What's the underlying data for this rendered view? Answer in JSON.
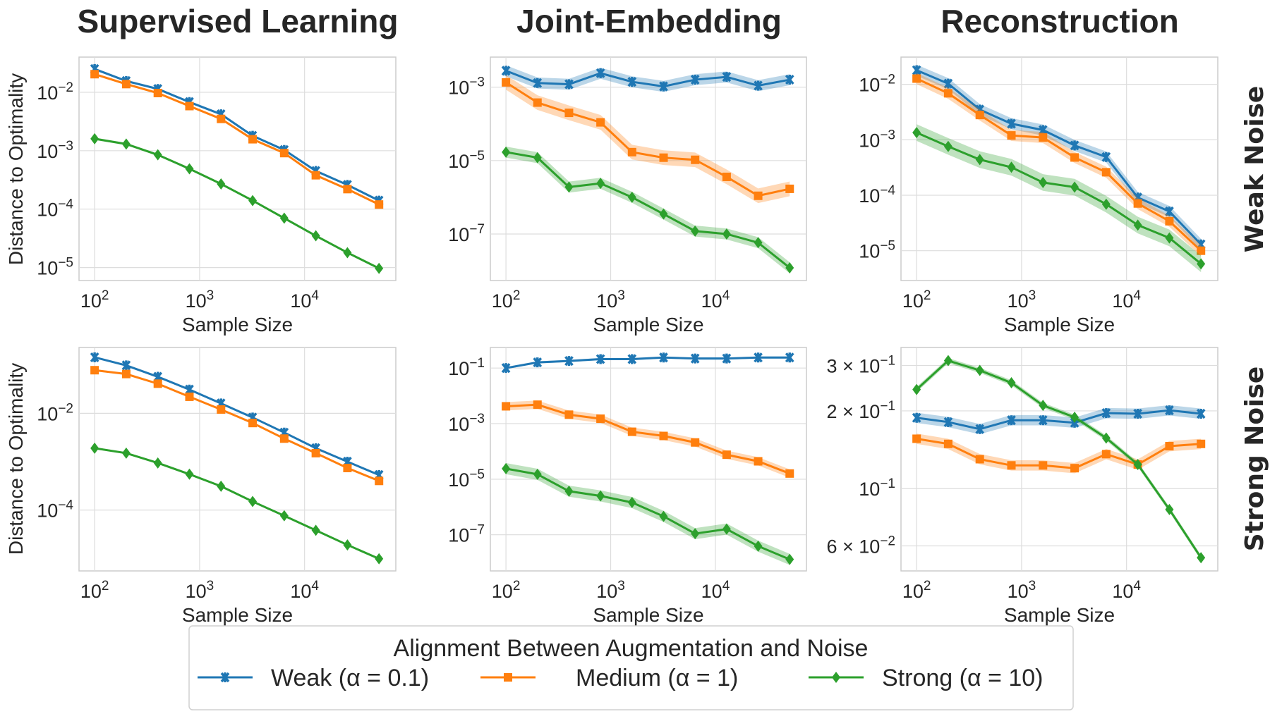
{
  "colors": {
    "weak": "#1f77b4",
    "medium": "#ff7f0e",
    "strong": "#2ca02c"
  },
  "column_titles": [
    "Supervised Learning",
    "Joint-Embedding",
    "Reconstruction"
  ],
  "row_labels": [
    "Weak Noise",
    "Strong Noise"
  ],
  "ylabel": "Distance to Optimality",
  "legend": {
    "title": "Alignment Between Augmentation and Noise",
    "entries": [
      {
        "key": "weak",
        "label": "Weak (α = 0.1)",
        "marker": "x"
      },
      {
        "key": "medium",
        "label": "Medium (α = 1)",
        "marker": "square"
      },
      {
        "key": "strong",
        "label": "Strong (α = 10)",
        "marker": "diamond"
      }
    ],
    "placement": "bottom-center"
  },
  "chart_data": [
    {
      "type": "line",
      "title": "Supervised Learning",
      "row": "Weak Noise",
      "xlabel": "Sample Size",
      "ylabel": "Distance to Optimality",
      "xscale": "log",
      "yscale": "log",
      "grid": true,
      "x": [
        100,
        200,
        400,
        800,
        1600,
        3200,
        6400,
        12800,
        25600,
        51200
      ],
      "xlim": [
        71,
        74000
      ],
      "ylim": [
        6e-06,
        0.04
      ],
      "xticks": [
        {
          "value": 100,
          "base": "10",
          "exp": "2"
        },
        {
          "value": 1000,
          "base": "10",
          "exp": "3"
        },
        {
          "value": 10000,
          "base": "10",
          "exp": "4"
        }
      ],
      "yticks": [
        {
          "value": 0.01,
          "base": "10",
          "exp": "−2"
        },
        {
          "value": 0.001,
          "base": "10",
          "exp": "−3"
        },
        {
          "value": 0.0001,
          "base": "10",
          "exp": "−4"
        },
        {
          "value": 1e-05,
          "base": "10",
          "exp": "−5"
        }
      ],
      "series": [
        {
          "key": "weak",
          "values": [
            0.025,
            0.0156,
            0.0114,
            0.0068,
            0.0042,
            0.0018,
            0.00103,
            0.00045,
            0.00026,
            0.00014
          ],
          "spread": 0.02
        },
        {
          "key": "medium",
          "values": [
            0.0204,
            0.0138,
            0.0097,
            0.0058,
            0.0035,
            0.00157,
            0.00091,
            0.00038,
            0.00022,
            0.00012
          ],
          "spread": 0.02
        },
        {
          "key": "strong",
          "values": [
            0.0016,
            0.0013,
            0.00085,
            0.00049,
            0.00027,
            0.00014,
            7e-05,
            3.5e-05,
            1.8e-05,
            9.7e-06
          ],
          "spread": 0.02
        }
      ]
    },
    {
      "type": "line",
      "title": "Joint-Embedding",
      "row": "Weak Noise",
      "xlabel": "Sample Size",
      "xscale": "log",
      "yscale": "log",
      "grid": true,
      "x": [
        100,
        200,
        400,
        800,
        1600,
        3200,
        6400,
        12800,
        25600,
        51200
      ],
      "xlim": [
        71,
        74000
      ],
      "ylim": [
        5.4e-09,
        0.0066
      ],
      "xticks": [
        {
          "value": 100,
          "base": "10",
          "exp": "2"
        },
        {
          "value": 1000,
          "base": "10",
          "exp": "3"
        },
        {
          "value": 10000,
          "base": "10",
          "exp": "4"
        }
      ],
      "yticks": [
        {
          "value": 0.001,
          "base": "10",
          "exp": "−3"
        },
        {
          "value": 1e-05,
          "base": "10",
          "exp": "−5"
        },
        {
          "value": 1e-07,
          "base": "10",
          "exp": "−7"
        }
      ],
      "series": [
        {
          "key": "weak",
          "values": [
            0.0028,
            0.0013,
            0.0012,
            0.0024,
            0.0014,
            0.00105,
            0.0016,
            0.0019,
            0.0011,
            0.0016
          ],
          "spread": 0.15
        },
        {
          "key": "medium",
          "values": [
            0.00135,
            0.00038,
            0.0002,
            0.00011,
            1.7e-05,
            1.2e-05,
            1.05e-05,
            3.6e-06,
            1.1e-06,
            1.7e-06
          ],
          "spread": 0.2
        },
        {
          "key": "strong",
          "values": [
            1.7e-05,
            1.2e-05,
            1.9e-06,
            2.4e-06,
            1e-06,
            3.5e-07,
            1.2e-07,
            1e-07,
            5.8e-08,
            1.2e-08
          ],
          "spread": 0.15
        }
      ]
    },
    {
      "type": "line",
      "title": "Reconstruction",
      "row": "Weak Noise",
      "xlabel": "Sample Size",
      "xscale": "log",
      "yscale": "log",
      "grid": true,
      "x": [
        100,
        200,
        400,
        800,
        1600,
        3200,
        6400,
        12800,
        25600,
        51200
      ],
      "xlim": [
        71,
        74000
      ],
      "ylim": [
        2.9e-06,
        0.031
      ],
      "xticks": [
        {
          "value": 100,
          "base": "10",
          "exp": "2"
        },
        {
          "value": 1000,
          "base": "10",
          "exp": "3"
        },
        {
          "value": 10000,
          "base": "10",
          "exp": "4"
        }
      ],
      "yticks": [
        {
          "value": 0.01,
          "base": "10",
          "exp": "−2"
        },
        {
          "value": 0.001,
          "base": "10",
          "exp": "−3"
        },
        {
          "value": 0.0001,
          "base": "10",
          "exp": "−4"
        },
        {
          "value": 1e-05,
          "base": "10",
          "exp": "−5"
        }
      ],
      "series": [
        {
          "key": "weak",
          "values": [
            0.018,
            0.0103,
            0.0035,
            0.00195,
            0.0015,
            0.00079,
            0.00049,
            9.1e-05,
            5.1e-05,
            1.3e-05
          ],
          "spread": 0.1
        },
        {
          "key": "medium",
          "values": [
            0.0127,
            0.0069,
            0.0028,
            0.0012,
            0.0011,
            0.00048,
            0.00026,
            7.1e-05,
            3.4e-05,
            1e-05
          ],
          "spread": 0.1
        },
        {
          "key": "strong",
          "values": [
            0.00135,
            0.00076,
            0.00044,
            0.00032,
            0.00017,
            0.00014,
            6.9e-05,
            2.9e-05,
            1.7e-05,
            5.8e-06
          ],
          "spread": 0.15
        }
      ]
    },
    {
      "type": "line",
      "title": "Supervised Learning",
      "row": "Strong Noise",
      "xlabel": "Sample Size",
      "ylabel": "Distance to Optimality",
      "xscale": "log",
      "yscale": "log",
      "grid": true,
      "x": [
        100,
        200,
        400,
        800,
        1600,
        3200,
        6400,
        12800,
        25600,
        51200
      ],
      "xlim": [
        71,
        74000
      ],
      "ylim": [
        5.5e-06,
        0.23
      ],
      "xticks": [
        {
          "value": 100,
          "base": "10",
          "exp": "2"
        },
        {
          "value": 1000,
          "base": "10",
          "exp": "3"
        },
        {
          "value": 10000,
          "base": "10",
          "exp": "4"
        }
      ],
      "yticks": [
        {
          "value": 0.01,
          "base": "10",
          "exp": "−2"
        },
        {
          "value": 0.0001,
          "base": "10",
          "exp": "−4"
        }
      ],
      "series": [
        {
          "key": "weak",
          "values": [
            0.144,
            0.098,
            0.057,
            0.031,
            0.016,
            0.0082,
            0.004,
            0.0019,
            0.001,
            0.00053
          ],
          "spread": 0.02
        },
        {
          "key": "medium",
          "values": [
            0.078,
            0.065,
            0.041,
            0.022,
            0.012,
            0.0063,
            0.003,
            0.0015,
            0.00074,
            0.0004
          ],
          "spread": 0.02
        },
        {
          "key": "strong",
          "values": [
            0.0019,
            0.0015,
            0.00094,
            0.00055,
            0.00031,
            0.00015,
            7.6e-05,
            3.8e-05,
            1.9e-05,
            9.8e-06
          ],
          "spread": 0.02
        }
      ]
    },
    {
      "type": "line",
      "title": "Joint-Embedding",
      "row": "Strong Noise",
      "xlabel": "Sample Size",
      "xscale": "log",
      "yscale": "log",
      "grid": true,
      "x": [
        100,
        200,
        400,
        800,
        1600,
        3200,
        6400,
        12800,
        25600,
        51200
      ],
      "xlim": [
        71,
        74000
      ],
      "ylim": [
        5e-09,
        0.55
      ],
      "xticks": [
        {
          "value": 100,
          "base": "10",
          "exp": "2"
        },
        {
          "value": 1000,
          "base": "10",
          "exp": "3"
        },
        {
          "value": 10000,
          "base": "10",
          "exp": "4"
        }
      ],
      "yticks": [
        {
          "value": 0.1,
          "base": "10",
          "exp": "−1"
        },
        {
          "value": 0.001,
          "base": "10",
          "exp": "−3"
        },
        {
          "value": 1e-05,
          "base": "10",
          "exp": "−5"
        },
        {
          "value": 1e-07,
          "base": "10",
          "exp": "−7"
        }
      ],
      "series": [
        {
          "key": "weak",
          "values": [
            0.1,
            0.16,
            0.18,
            0.21,
            0.21,
            0.24,
            0.22,
            0.22,
            0.24,
            0.24
          ],
          "spread": 0.04
        },
        {
          "key": "medium",
          "values": [
            0.0042,
            0.0048,
            0.0021,
            0.0015,
            0.00051,
            0.00036,
            0.00021,
            7.6e-05,
            4.4e-05,
            1.6e-05
          ],
          "spread": 0.15
        },
        {
          "key": "strong",
          "values": [
            2.4e-05,
            1.5e-05,
            3.7e-06,
            2.5e-06,
            1.45e-06,
            4.6e-07,
            1.1e-07,
            1.6e-07,
            3.9e-08,
            1.3e-08
          ],
          "spread": 0.2
        }
      ]
    },
    {
      "type": "line",
      "title": "Reconstruction",
      "row": "Strong Noise",
      "xlabel": "Sample Size",
      "xscale": "log",
      "yscale": "log",
      "grid": true,
      "x": [
        100,
        200,
        400,
        800,
        1600,
        3200,
        6400,
        12800,
        25600,
        51200
      ],
      "xlim": [
        71,
        74000
      ],
      "ylim": [
        0.048,
        0.352
      ],
      "xticks": [
        {
          "value": 100,
          "base": "10",
          "exp": "2"
        },
        {
          "value": 1000,
          "base": "10",
          "exp": "3"
        },
        {
          "value": 10000,
          "base": "10",
          "exp": "4"
        }
      ],
      "yticks": [
        {
          "value": 0.3,
          "base": "3 × 10",
          "exp": "−1"
        },
        {
          "value": 0.2,
          "base": "2 × 10",
          "exp": "−1"
        },
        {
          "value": 0.1,
          "base": "10",
          "exp": "−1"
        },
        {
          "value": 0.06,
          "base": "6 × 10",
          "exp": "−2"
        }
      ],
      "series": [
        {
          "key": "weak",
          "values": [
            0.188,
            0.181,
            0.17,
            0.184,
            0.184,
            0.18,
            0.196,
            0.195,
            0.201,
            0.195
          ],
          "spread": 0.02
        },
        {
          "key": "medium",
          "values": [
            0.156,
            0.149,
            0.13,
            0.123,
            0.123,
            0.12,
            0.136,
            0.124,
            0.146,
            0.149
          ],
          "spread": 0.02
        },
        {
          "key": "strong",
          "values": [
            0.242,
            0.313,
            0.287,
            0.257,
            0.21,
            0.189,
            0.157,
            0.124,
            0.083,
            0.054
          ],
          "spread": 0.01
        }
      ]
    }
  ]
}
